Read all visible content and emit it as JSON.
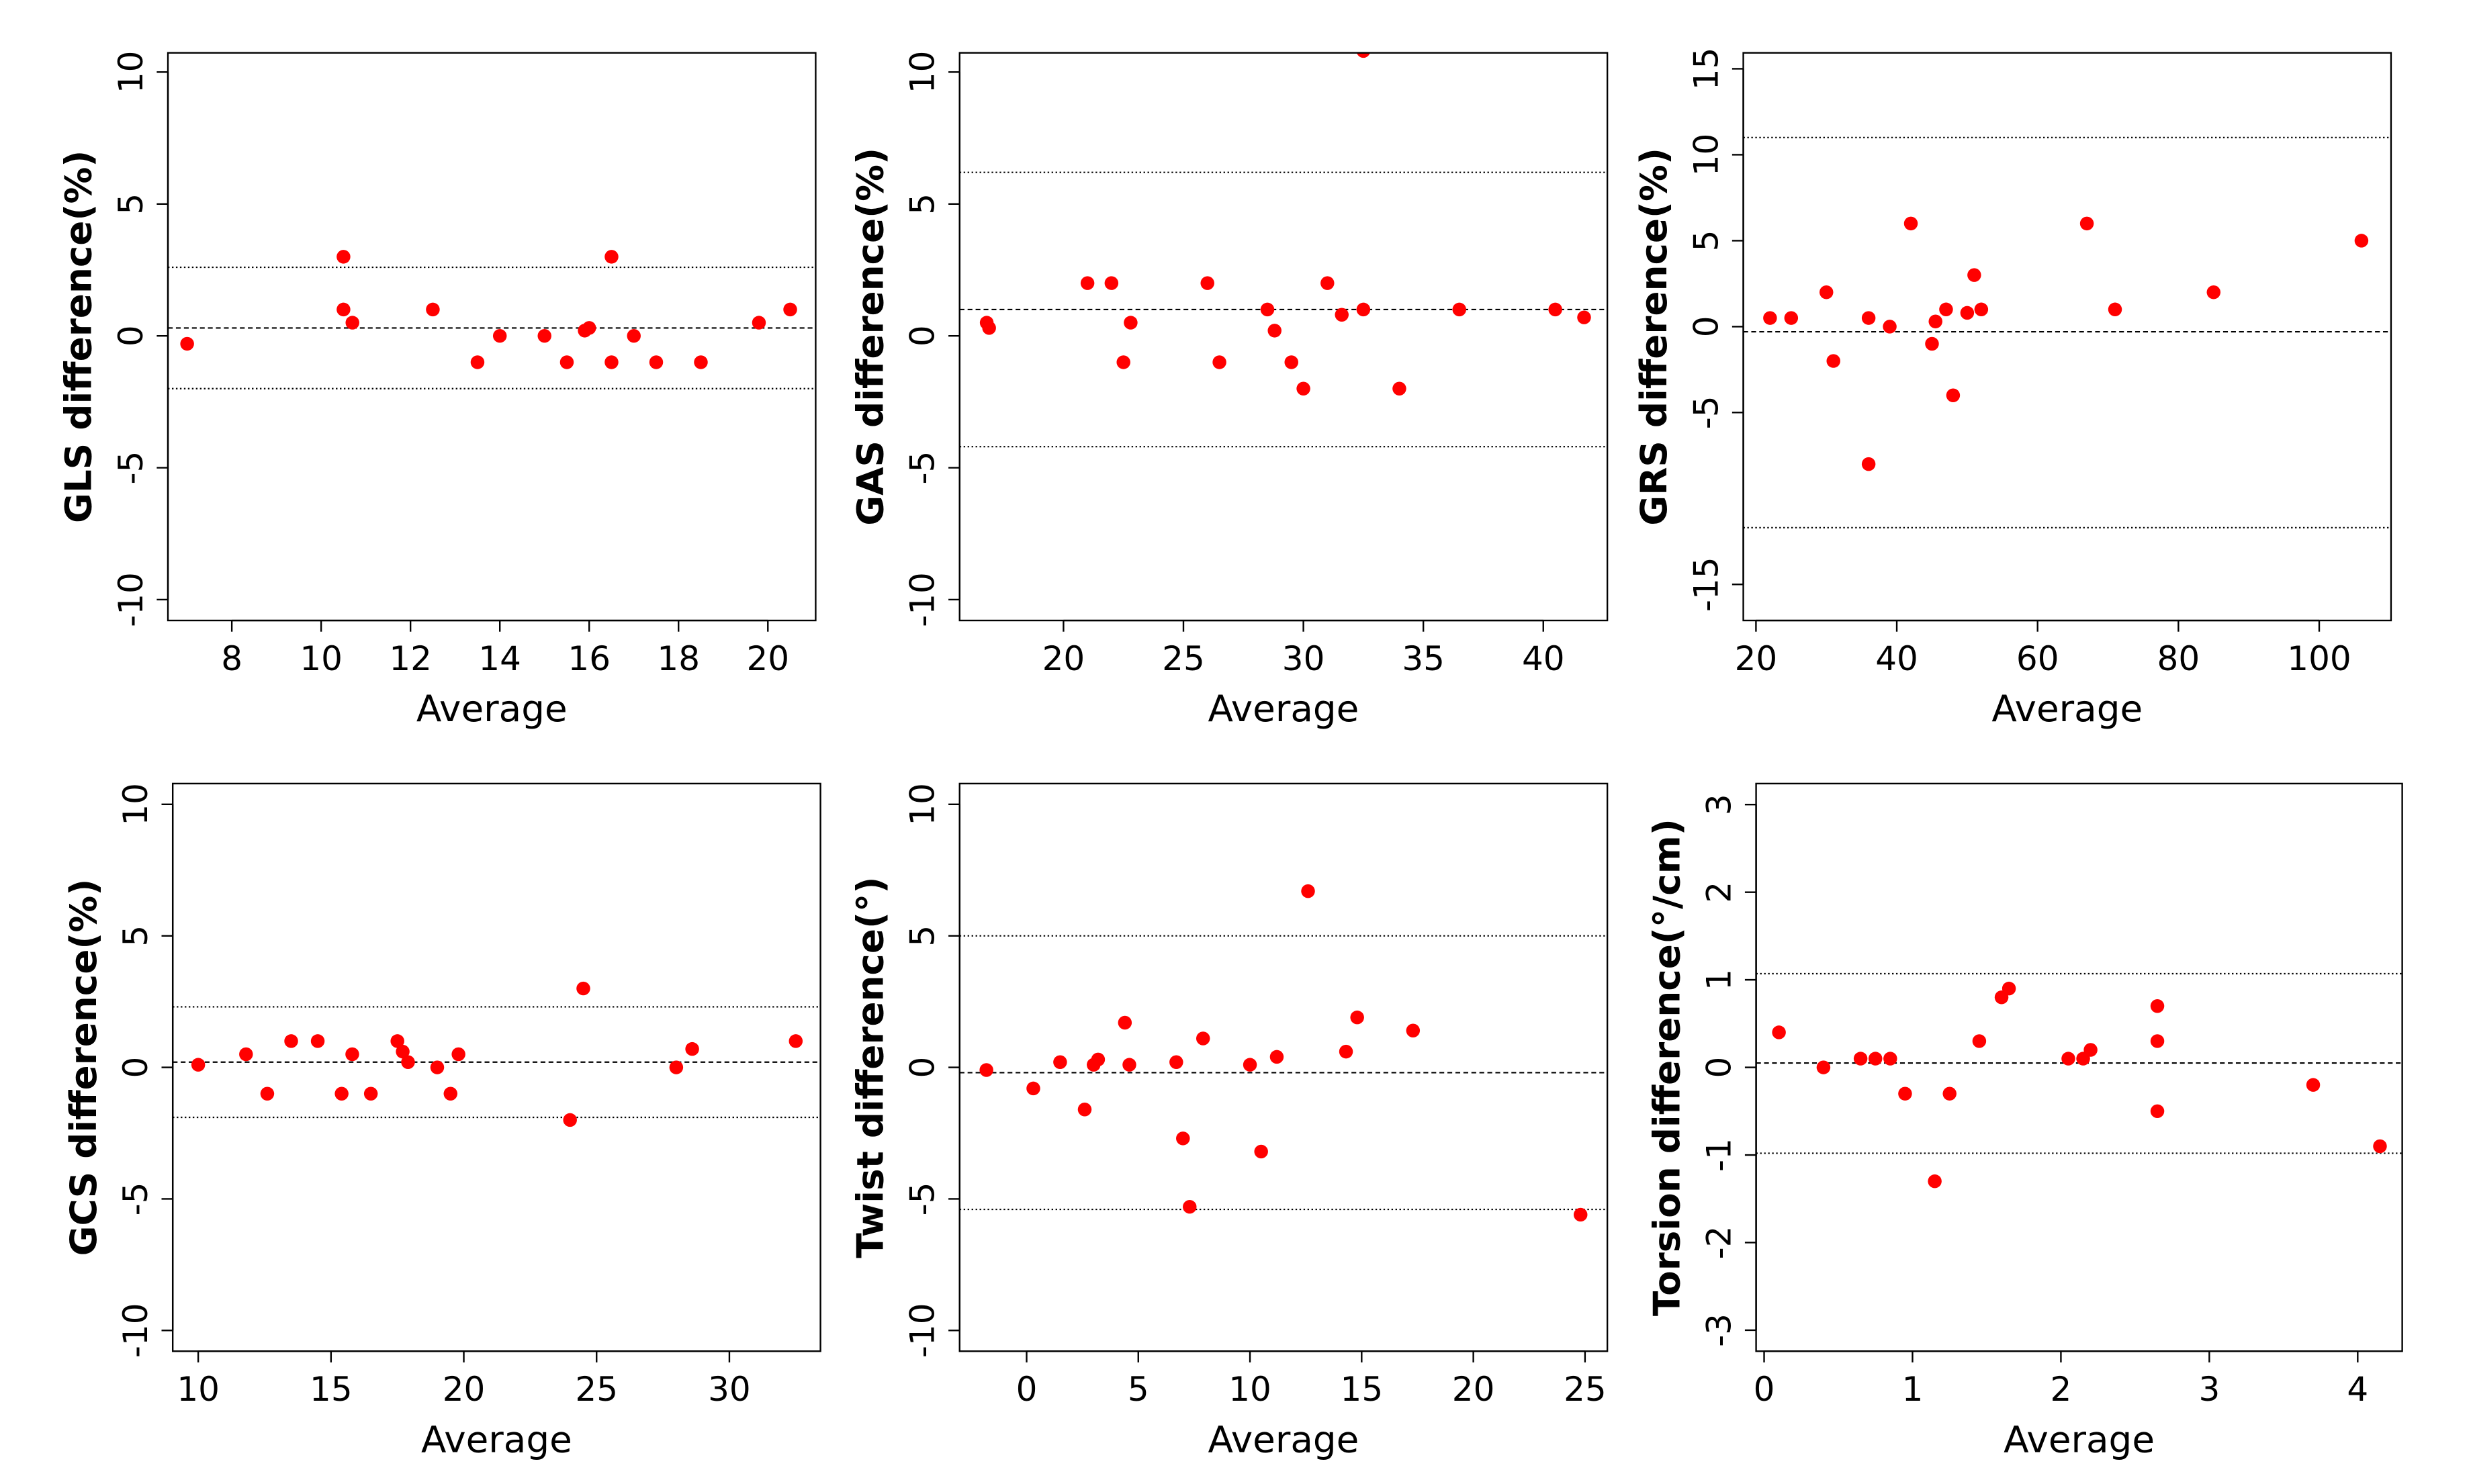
{
  "chart_data": [
    {
      "type": "scatter",
      "xlabel": "Average",
      "ylabel": "GLS difference(%)",
      "xlim": [
        6.57,
        21.07
      ],
      "ylim": [
        -10.79,
        10.73
      ],
      "xticks": [
        8,
        10,
        12,
        14,
        16,
        18,
        20
      ],
      "yticks": [
        -10,
        -5,
        0,
        5,
        10
      ],
      "point_color": "#ff0000",
      "mean_line": 0.3,
      "upper_loa": 2.6,
      "lower_loa": -2.0,
      "points": [
        [
          7,
          -0.3
        ],
        [
          10.5,
          3
        ],
        [
          10.5,
          1
        ],
        [
          10.7,
          0.5
        ],
        [
          12.5,
          1
        ],
        [
          13.5,
          -1
        ],
        [
          14,
          0
        ],
        [
          15,
          0
        ],
        [
          15.5,
          -1
        ],
        [
          15.9,
          0.2
        ],
        [
          16,
          0.3
        ],
        [
          16.5,
          3
        ],
        [
          16.5,
          -1
        ],
        [
          17,
          0
        ],
        [
          17.5,
          -1
        ],
        [
          18.5,
          -1
        ],
        [
          19.8,
          0.5
        ],
        [
          20.5,
          1
        ]
      ]
    },
    {
      "type": "scatter",
      "xlabel": "Average",
      "ylabel": "GAS difference(%)",
      "xlim": [
        15.67,
        42.67
      ],
      "ylim": [
        -10.79,
        10.73
      ],
      "xticks": [
        20,
        25,
        30,
        35,
        40
      ],
      "yticks": [
        -10,
        -5,
        0,
        5,
        10
      ],
      "point_color": "#ff0000",
      "mean_line": 1.0,
      "upper_loa": 6.2,
      "lower_loa": -4.2,
      "points": [
        [
          16.8,
          0.5
        ],
        [
          16.9,
          0.3
        ],
        [
          21,
          2
        ],
        [
          22,
          2
        ],
        [
          22.5,
          -1
        ],
        [
          22.8,
          0.5
        ],
        [
          26,
          2
        ],
        [
          26.5,
          -1
        ],
        [
          28.5,
          1
        ],
        [
          28.8,
          0.2
        ],
        [
          29.5,
          -1
        ],
        [
          30,
          -2
        ],
        [
          31,
          2
        ],
        [
          31.6,
          0.8
        ],
        [
          32.5,
          1
        ],
        [
          34,
          -2
        ],
        [
          36.5,
          1
        ],
        [
          40.5,
          1
        ],
        [
          41.7,
          0.7
        ],
        [
          32.5,
          10.8
        ]
      ]
    },
    {
      "type": "scatter",
      "xlabel": "Average",
      "ylabel": "GRS difference(%)",
      "xlim": [
        18.2,
        110.2
      ],
      "ylim": [
        -17.1,
        15.93
      ],
      "xticks": [
        20,
        40,
        60,
        80,
        100
      ],
      "yticks": [
        -15,
        -5,
        0,
        5,
        10,
        15
      ],
      "point_color": "#ff0000",
      "mean_line": -0.3,
      "upper_loa": 11.0,
      "lower_loa": -11.7,
      "points": [
        [
          22,
          0.5
        ],
        [
          25,
          0.5
        ],
        [
          30,
          2
        ],
        [
          31,
          -2
        ],
        [
          36,
          0.5
        ],
        [
          36,
          -8
        ],
        [
          39,
          0
        ],
        [
          42,
          6
        ],
        [
          45,
          -1
        ],
        [
          45.5,
          0.3
        ],
        [
          47,
          1
        ],
        [
          48,
          -4
        ],
        [
          50,
          0.8
        ],
        [
          51,
          3
        ],
        [
          52,
          1
        ],
        [
          67,
          6
        ],
        [
          71,
          1
        ],
        [
          85,
          2
        ],
        [
          106,
          5
        ]
      ]
    },
    {
      "type": "scatter",
      "xlabel": "Average",
      "ylabel": "GCS difference(%)",
      "xlim": [
        9.04,
        33.43
      ],
      "ylim": [
        -10.79,
        10.79
      ],
      "xticks": [
        10,
        15,
        20,
        25,
        30
      ],
      "yticks": [
        -10,
        -5,
        0,
        5,
        10
      ],
      "point_color": "#ff0000",
      "mean_line": 0.2,
      "upper_loa": 2.3,
      "lower_loa": -1.9,
      "points": [
        [
          10,
          0.1
        ],
        [
          11.8,
          0.5
        ],
        [
          12.6,
          -1
        ],
        [
          13.5,
          1
        ],
        [
          14.5,
          1
        ],
        [
          15.4,
          -1
        ],
        [
          15.8,
          0.5
        ],
        [
          16.5,
          -1
        ],
        [
          17.5,
          1
        ],
        [
          17.7,
          0.6
        ],
        [
          17.9,
          0.2
        ],
        [
          19,
          0
        ],
        [
          19.5,
          -1
        ],
        [
          19.8,
          0.5
        ],
        [
          24,
          -2
        ],
        [
          24.5,
          3
        ],
        [
          28,
          0
        ],
        [
          28.6,
          0.7
        ],
        [
          32.5,
          1
        ]
      ]
    },
    {
      "type": "scatter",
      "xlabel": "Average",
      "ylabel": "Twist difference(°)",
      "xlim": [
        -3.0,
        26.0
      ],
      "ylim": [
        -10.79,
        10.79
      ],
      "xticks": [
        0,
        5,
        10,
        15,
        20,
        25
      ],
      "yticks": [
        -10,
        -5,
        0,
        5,
        10
      ],
      "point_color": "#ff0000",
      "mean_line": -0.2,
      "upper_loa": 5.0,
      "lower_loa": -5.4,
      "points": [
        [
          -1.8,
          -0.1
        ],
        [
          0.3,
          -0.8
        ],
        [
          1.5,
          0.2
        ],
        [
          2.6,
          -1.6
        ],
        [
          3,
          0.1
        ],
        [
          3.2,
          0.3
        ],
        [
          4.4,
          1.7
        ],
        [
          4.6,
          0.1
        ],
        [
          6.7,
          0.2
        ],
        [
          7,
          -2.7
        ],
        [
          7.3,
          -5.3
        ],
        [
          7.9,
          1.1
        ],
        [
          10,
          0.1
        ],
        [
          10.5,
          -3.2
        ],
        [
          11.2,
          0.4
        ],
        [
          12.6,
          6.7
        ],
        [
          14.3,
          0.6
        ],
        [
          14.8,
          1.9
        ],
        [
          17.3,
          1.4
        ],
        [
          24.8,
          -5.6
        ]
      ]
    },
    {
      "type": "scatter",
      "xlabel": "Average",
      "ylabel": "Torsion difference(°/cm)",
      "xlim": [
        -0.054,
        4.3
      ],
      "ylim": [
        -3.24,
        3.24
      ],
      "xticks": [
        0,
        1,
        2,
        3,
        4
      ],
      "yticks": [
        -3,
        -2,
        -1,
        0,
        1,
        2,
        3
      ],
      "point_color": "#ff0000",
      "mean_line": 0.05,
      "upper_loa": 1.07,
      "lower_loa": -0.98,
      "points": [
        [
          0.1,
          0.4
        ],
        [
          0.4,
          0
        ],
        [
          0.65,
          0.1
        ],
        [
          0.75,
          0.1
        ],
        [
          0.85,
          0.1
        ],
        [
          0.95,
          -0.3
        ],
        [
          1.15,
          -1.3
        ],
        [
          1.25,
          -0.3
        ],
        [
          1.45,
          0.3
        ],
        [
          1.6,
          0.8
        ],
        [
          1.65,
          0.9
        ],
        [
          2.05,
          0.1
        ],
        [
          2.15,
          0.1
        ],
        [
          2.2,
          0.2
        ],
        [
          2.65,
          0.7
        ],
        [
          2.65,
          0.3
        ],
        [
          2.65,
          -0.5
        ],
        [
          3.7,
          -0.2
        ],
        [
          4.15,
          -0.9
        ]
      ]
    }
  ]
}
